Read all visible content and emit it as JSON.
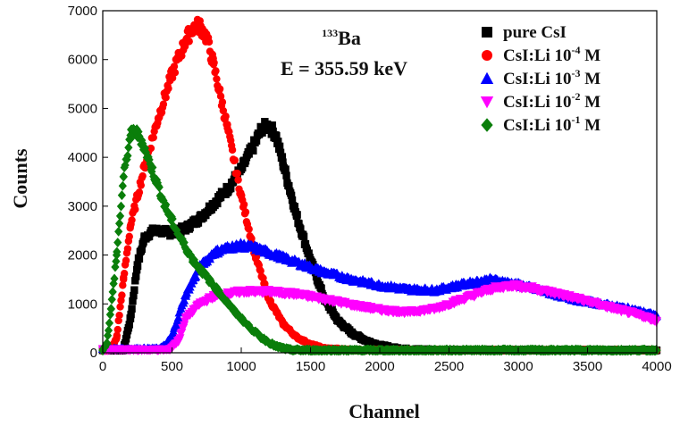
{
  "chart_data": {
    "type": "scatter",
    "xlabel": "Channel",
    "ylabel": "Counts",
    "xlim": [
      0,
      4000
    ],
    "ylim": [
      0,
      7000
    ],
    "x_ticks": [
      0,
      500,
      1000,
      1500,
      2000,
      2500,
      3000,
      3500,
      4000
    ],
    "y_ticks": [
      0,
      1000,
      2000,
      3000,
      4000,
      5000,
      6000,
      7000
    ],
    "grid": false,
    "legend_position": "top-right",
    "annotation": {
      "isotope_mass": "133",
      "isotope_symbol": "Ba",
      "energy": "E = 355.59 keV"
    },
    "series": [
      {
        "name": "pure CsI",
        "marker": "square",
        "color": "#000000",
        "points": [
          [
            0,
            50
          ],
          [
            100,
            50
          ],
          [
            150,
            60
          ],
          [
            200,
            700
          ],
          [
            250,
            1800
          ],
          [
            300,
            2350
          ],
          [
            350,
            2480
          ],
          [
            400,
            2500
          ],
          [
            500,
            2450
          ],
          [
            600,
            2550
          ],
          [
            700,
            2750
          ],
          [
            800,
            3050
          ],
          [
            900,
            3350
          ],
          [
            1000,
            3750
          ],
          [
            1100,
            4300
          ],
          [
            1150,
            4600
          ],
          [
            1200,
            4650
          ],
          [
            1250,
            4450
          ],
          [
            1300,
            3900
          ],
          [
            1400,
            2800
          ],
          [
            1500,
            1900
          ],
          [
            1600,
            1100
          ],
          [
            1700,
            650
          ],
          [
            1800,
            400
          ],
          [
            1900,
            250
          ],
          [
            2000,
            150
          ],
          [
            2100,
            100
          ],
          [
            2200,
            70
          ],
          [
            2500,
            50
          ],
          [
            3000,
            50
          ],
          [
            4000,
            50
          ]
        ]
      },
      {
        "name": "CsI:Li",
        "exponent": "-4",
        "marker": "circle",
        "color": "#ff0000",
        "points": [
          [
            0,
            50
          ],
          [
            60,
            60
          ],
          [
            100,
            300
          ],
          [
            150,
            1500
          ],
          [
            200,
            2600
          ],
          [
            300,
            3800
          ],
          [
            400,
            4800
          ],
          [
            500,
            5700
          ],
          [
            600,
            6400
          ],
          [
            650,
            6650
          ],
          [
            700,
            6700
          ],
          [
            750,
            6450
          ],
          [
            800,
            5900
          ],
          [
            900,
            4600
          ],
          [
            1000,
            3200
          ],
          [
            1100,
            2000
          ],
          [
            1200,
            1100
          ],
          [
            1300,
            600
          ],
          [
            1400,
            320
          ],
          [
            1500,
            170
          ],
          [
            1600,
            90
          ],
          [
            1800,
            55
          ],
          [
            2000,
            50
          ],
          [
            3000,
            50
          ],
          [
            4000,
            50
          ]
        ]
      },
      {
        "name": "CsI:Li",
        "exponent": "-3",
        "marker": "triangle-up",
        "color": "#0000ff",
        "points": [
          [
            0,
            80
          ],
          [
            400,
            80
          ],
          [
            450,
            150
          ],
          [
            500,
            350
          ],
          [
            600,
            1200
          ],
          [
            700,
            1750
          ],
          [
            800,
            2050
          ],
          [
            900,
            2150
          ],
          [
            1000,
            2200
          ],
          [
            1100,
            2150
          ],
          [
            1200,
            2050
          ],
          [
            1400,
            1850
          ],
          [
            1600,
            1650
          ],
          [
            1800,
            1500
          ],
          [
            2000,
            1380
          ],
          [
            2200,
            1300
          ],
          [
            2400,
            1280
          ],
          [
            2600,
            1400
          ],
          [
            2800,
            1500
          ],
          [
            3000,
            1400
          ],
          [
            3200,
            1250
          ],
          [
            3400,
            1100
          ],
          [
            3600,
            1000
          ],
          [
            3800,
            900
          ],
          [
            4000,
            760
          ]
        ]
      },
      {
        "name": "CsI:Li",
        "exponent": "-2",
        "marker": "triangle-down",
        "color": "#ff00ff",
        "points": [
          [
            0,
            60
          ],
          [
            480,
            60
          ],
          [
            550,
            250
          ],
          [
            600,
            700
          ],
          [
            700,
            1000
          ],
          [
            800,
            1150
          ],
          [
            1000,
            1250
          ],
          [
            1200,
            1250
          ],
          [
            1400,
            1200
          ],
          [
            1600,
            1100
          ],
          [
            1800,
            980
          ],
          [
            2000,
            880
          ],
          [
            2200,
            830
          ],
          [
            2400,
            900
          ],
          [
            2600,
            1100
          ],
          [
            2800,
            1300
          ],
          [
            2950,
            1380
          ],
          [
            3100,
            1320
          ],
          [
            3300,
            1200
          ],
          [
            3500,
            1050
          ],
          [
            3700,
            900
          ],
          [
            3900,
            750
          ],
          [
            4000,
            650
          ]
        ]
      },
      {
        "name": "CsI:Li",
        "exponent": "-1",
        "marker": "diamond",
        "color": "#0a7e0a",
        "points": [
          [
            0,
            50
          ],
          [
            30,
            200
          ],
          [
            60,
            900
          ],
          [
            100,
            2000
          ],
          [
            150,
            3600
          ],
          [
            200,
            4450
          ],
          [
            230,
            4550
          ],
          [
            280,
            4350
          ],
          [
            350,
            3800
          ],
          [
            450,
            3000
          ],
          [
            550,
            2400
          ],
          [
            650,
            1900
          ],
          [
            750,
            1550
          ],
          [
            850,
            1200
          ],
          [
            950,
            850
          ],
          [
            1050,
            550
          ],
          [
            1150,
            300
          ],
          [
            1250,
            130
          ],
          [
            1350,
            60
          ],
          [
            1500,
            50
          ],
          [
            2000,
            50
          ],
          [
            3000,
            50
          ],
          [
            4000,
            50
          ]
        ]
      }
    ]
  }
}
